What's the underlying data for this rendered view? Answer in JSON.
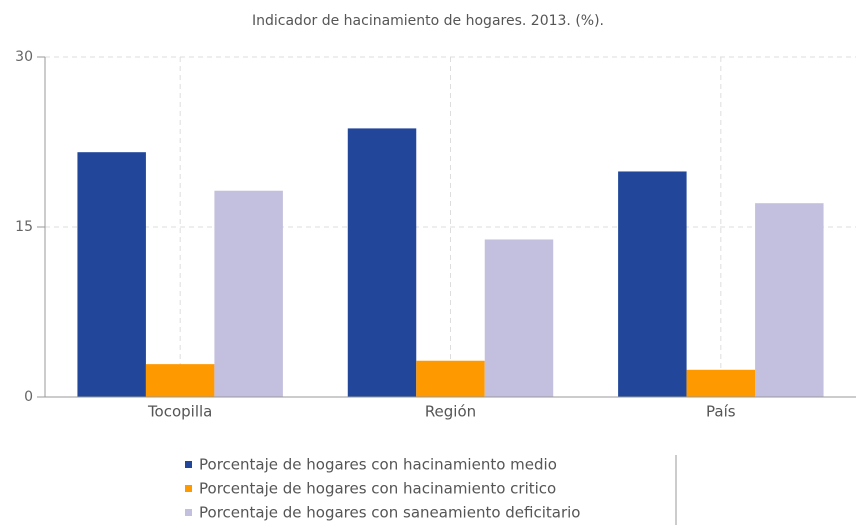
{
  "chart_data": {
    "type": "bar",
    "title": "Indicador de hacinamiento de hogares. 2013. (%).",
    "categories": [
      "Tocopilla",
      "Región",
      "País"
    ],
    "series": [
      {
        "name": "Porcentaje de hogares con hacinamiento medio",
        "color": "#21469a",
        "values": [
          21.6,
          23.7,
          19.9
        ]
      },
      {
        "name": "Porcentaje de hogares con hacinamiento critico",
        "color": "#ff9900",
        "values": [
          2.9,
          3.2,
          2.4
        ]
      },
      {
        "name": "Porcentaje de hogares con saneamiento deficitario",
        "color": "#c3bfdf",
        "values": [
          18.2,
          13.9,
          17.1
        ]
      }
    ],
    "ylim": [
      0,
      30
    ],
    "yticks": [
      0,
      15,
      30
    ],
    "grid": true
  }
}
